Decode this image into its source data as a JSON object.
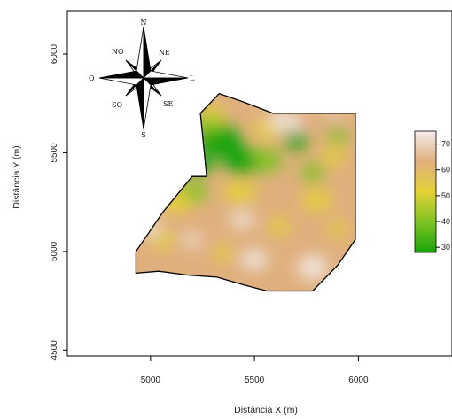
{
  "axes": {
    "x_label": "Distância X (m)",
    "y_label": "Distância Y (m)",
    "x_ticks": [
      "5000",
      "5500",
      "6000"
    ],
    "y_ticks": [
      "4500",
      "5000",
      "5500",
      "6000"
    ],
    "x_range": [
      4600,
      6450
    ],
    "y_range": [
      4470,
      6220
    ]
  },
  "compass": {
    "icon": "compass-rose-icon",
    "labels": {
      "n": "N",
      "ne": "NE",
      "l": "L",
      "se": "SE",
      "s": "S",
      "so": "SO",
      "o": "O",
      "no": "NO"
    }
  },
  "legend": {
    "ticks": [
      "70",
      "60",
      "50",
      "40",
      "30"
    ]
  },
  "colors": {
    "low": "#19a50a",
    "mid_low": "#7dc323",
    "mid": "#e5d235",
    "mid_high": "#dfb07e",
    "high": "#f4ecec",
    "border": "#000000"
  },
  "chart_data": {
    "type": "heatmap",
    "xlabel": "Distância X (m)",
    "ylabel": "Distância Y (m)",
    "xlim": [
      4600,
      6450
    ],
    "ylim": [
      4470,
      6220
    ],
    "x_ticks": [
      5000,
      5500,
      6000
    ],
    "y_ticks": [
      4500,
      5000,
      5500,
      6000
    ],
    "color_scale": {
      "min": 28,
      "max": 75,
      "ticks": [
        30,
        40,
        50,
        60,
        70
      ]
    },
    "boundary": [
      [
        4930,
        4890
      ],
      [
        5040,
        4900
      ],
      [
        5180,
        4880
      ],
      [
        5320,
        4870
      ],
      [
        5450,
        4830
      ],
      [
        5560,
        4800
      ],
      [
        5780,
        4800
      ],
      [
        5900,
        4930
      ],
      [
        5985,
        5060
      ],
      [
        5985,
        5700
      ],
      [
        5590,
        5700
      ],
      [
        5440,
        5760
      ],
      [
        5330,
        5800
      ],
      [
        5240,
        5700
      ],
      [
        5270,
        5380
      ],
      [
        5200,
        5380
      ],
      [
        5060,
        5200
      ],
      [
        4930,
        5000
      ]
    ]
  }
}
